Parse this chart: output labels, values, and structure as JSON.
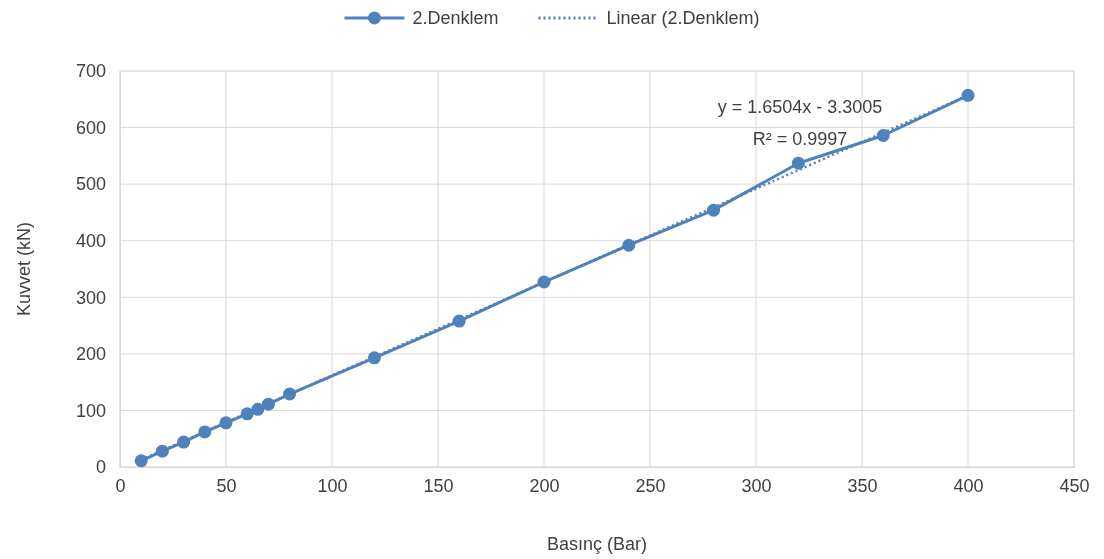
{
  "chart_data": {
    "type": "line",
    "xlabel": "Basınç (Bar)",
    "ylabel": "Kuvvet (kN)",
    "xlim": [
      0,
      450
    ],
    "xticks": [
      0,
      50,
      100,
      150,
      200,
      250,
      300,
      350,
      400,
      450
    ],
    "ylim": [
      0,
      700
    ],
    "yticks": [
      0,
      100,
      200,
      300,
      400,
      500,
      600,
      700
    ],
    "grid": true,
    "legend": "top",
    "series": [
      {
        "name": "2.Denklem",
        "color": "#4f81bd",
        "marker": "circle",
        "line_style": "solid",
        "x": [
          10,
          20,
          30,
          40,
          50,
          60,
          65,
          70,
          80,
          120,
          160,
          200,
          240,
          280,
          320,
          360,
          400
        ],
        "values": [
          11,
          28,
          44,
          62,
          78,
          94,
          102,
          111,
          129,
          193,
          258,
          327,
          392,
          454,
          537,
          586,
          657
        ]
      },
      {
        "name": "Linear (2.Denklem)",
        "color": "#4f81bd",
        "line_style": "dotted",
        "x": [
          10,
          400
        ],
        "values": [
          13,
          657
        ]
      }
    ],
    "annotations": [
      "y = 1.6504x - 3.3005",
      "R² = 0.9997"
    ]
  }
}
